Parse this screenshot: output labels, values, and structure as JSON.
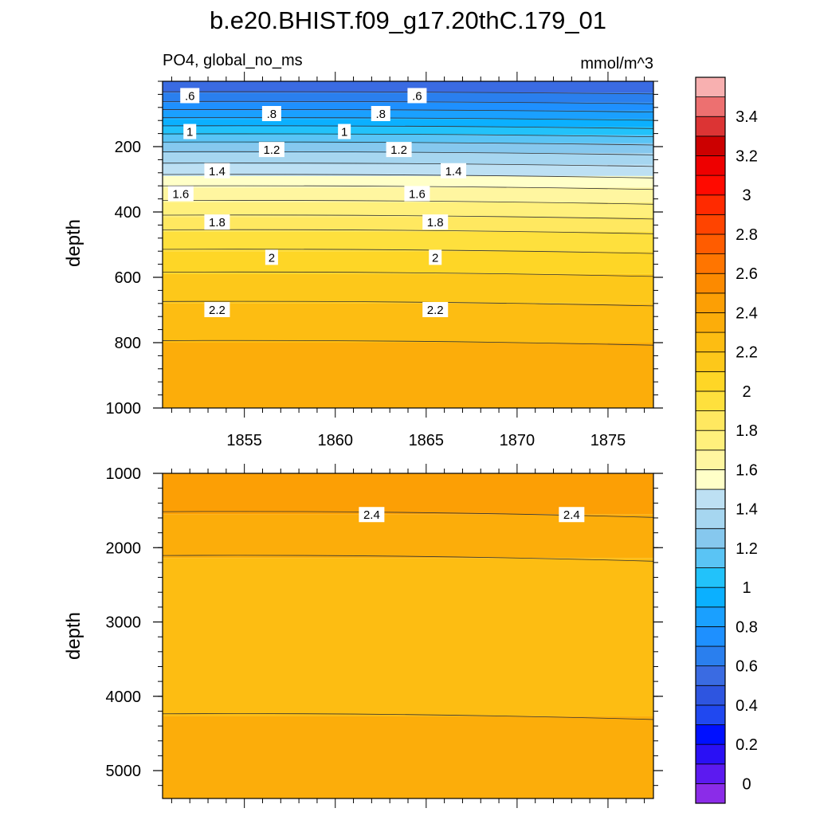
{
  "chart_data": {
    "type": "contour",
    "title": "b.e20.BHIST.f09_g17.20thC.179_01",
    "subtitle_left": "PO4, global_no_ms",
    "subtitle_right": "mmol/m^3",
    "panels": [
      {
        "ylabel": "depth",
        "ylim": [
          0,
          1000
        ],
        "y_reversed": true,
        "yticks": [
          200,
          400,
          600,
          800,
          1000
        ],
        "xlim": [
          1850.5,
          1877.5
        ],
        "xticks": [
          1855,
          1860,
          1865,
          1870,
          1875
        ],
        "bands": [
          {
            "low": 0.5,
            "high": 0.6,
            "d0": 0,
            "d1": 35
          },
          {
            "low": 0.6,
            "high": 0.7,
            "d0": 35,
            "d1": 65
          },
          {
            "low": 0.7,
            "high": 0.8,
            "d0": 65,
            "d1": 90
          },
          {
            "low": 0.8,
            "high": 0.9,
            "d0": 90,
            "d1": 115
          },
          {
            "low": 0.9,
            "high": 1.0,
            "d0": 115,
            "d1": 140
          },
          {
            "low": 1.0,
            "high": 1.1,
            "d0": 140,
            "d1": 165
          },
          {
            "low": 1.1,
            "high": 1.2,
            "d0": 165,
            "d1": 190
          },
          {
            "low": 1.2,
            "high": 1.3,
            "d0": 190,
            "d1": 220
          },
          {
            "low": 1.3,
            "high": 1.4,
            "d0": 220,
            "d1": 255
          },
          {
            "low": 1.4,
            "high": 1.5,
            "d0": 255,
            "d1": 290
          },
          {
            "low": 1.5,
            "high": 1.6,
            "d0": 290,
            "d1": 325
          },
          {
            "low": 1.6,
            "high": 1.7,
            "d0": 325,
            "d1": 370
          },
          {
            "low": 1.7,
            "high": 1.8,
            "d0": 370,
            "d1": 415
          },
          {
            "low": 1.8,
            "high": 1.9,
            "d0": 415,
            "d1": 460
          },
          {
            "low": 1.9,
            "high": 2.0,
            "d0": 460,
            "d1": 520
          },
          {
            "low": 2.0,
            "high": 2.1,
            "d0": 520,
            "d1": 590
          },
          {
            "low": 2.1,
            "high": 2.2,
            "d0": 590,
            "d1": 680
          },
          {
            "low": 2.2,
            "high": 2.3,
            "d0": 680,
            "d1": 800
          },
          {
            "low": 2.3,
            "high": 2.4,
            "d0": 800,
            "d1": 1000
          }
        ],
        "contour_labels": [
          {
            "text": ".6",
            "year": 1852,
            "depth": 45
          },
          {
            "text": ".6",
            "year": 1864.5,
            "depth": 45
          },
          {
            "text": ".8",
            "year": 1856.5,
            "depth": 100
          },
          {
            "text": ".8",
            "year": 1862.5,
            "depth": 100
          },
          {
            "text": "1",
            "year": 1852,
            "depth": 155
          },
          {
            "text": "1",
            "year": 1860.5,
            "depth": 155
          },
          {
            "text": "1.2",
            "year": 1856.5,
            "depth": 210
          },
          {
            "text": "1.2",
            "year": 1863.5,
            "depth": 210
          },
          {
            "text": "1.4",
            "year": 1853.5,
            "depth": 275
          },
          {
            "text": "1.4",
            "year": 1866.5,
            "depth": 275
          },
          {
            "text": "1.6",
            "year": 1851.5,
            "depth": 345
          },
          {
            "text": "1.6",
            "year": 1864.5,
            "depth": 345
          },
          {
            "text": "1.8",
            "year": 1853.5,
            "depth": 432
          },
          {
            "text": "1.8",
            "year": 1865.5,
            "depth": 432
          },
          {
            "text": "2",
            "year": 1856.5,
            "depth": 540
          },
          {
            "text": "2",
            "year": 1865.5,
            "depth": 540
          },
          {
            "text": "2.2",
            "year": 1853.5,
            "depth": 700
          },
          {
            "text": "2.2",
            "year": 1865.5,
            "depth": 700
          }
        ]
      },
      {
        "ylabel": "depth",
        "ylim": [
          1000,
          5375
        ],
        "y_reversed": true,
        "yticks": [
          1000,
          2000,
          3000,
          4000,
          5000
        ],
        "xlim": [
          1850.5,
          1877.5
        ],
        "bands": [
          {
            "low": 2.4,
            "high": 2.5,
            "d0": 1000,
            "d1": 1550
          },
          {
            "low": 2.3,
            "high": 2.4,
            "d0": 1550,
            "d1": 2140
          },
          {
            "low": 2.2,
            "high": 2.3,
            "d0": 2140,
            "d1": 4270
          },
          {
            "low": 2.3,
            "high": 2.4,
            "d0": 4270,
            "d1": 5375
          }
        ],
        "contour_labels": [
          {
            "text": "2.4",
            "year": 1862,
            "depth": 1560
          },
          {
            "text": "2.4",
            "year": 1873,
            "depth": 1560
          }
        ]
      }
    ],
    "colorbar": {
      "labels": [
        "0",
        "0.2",
        "0.4",
        "0.6",
        "0.8",
        "1",
        "1.2",
        "1.4",
        "1.6",
        "1.8",
        "2",
        "2.2",
        "2.4",
        "2.6",
        "2.8",
        "3",
        "3.2",
        "3.4"
      ],
      "levels_step": 0.1,
      "min": -0.1,
      "max": 3.6,
      "colors": [
        "#8b2ce8",
        "#5c1af0",
        "#2a10f5",
        "#0010ff",
        "#2048f0",
        "#2e55e0",
        "#3a6be2",
        "#2a7fee",
        "#1e90ff",
        "#1aa0ff",
        "#0bb0ff",
        "#22c2fa",
        "#5ac4f5",
        "#86c8ee",
        "#a6d6f0",
        "#bde0f3",
        "#ffffc8",
        "#fff6a0",
        "#fff07c",
        "#ffe860",
        "#fee03d",
        "#fed626",
        "#fdc81a",
        "#fdbd12",
        "#fcad0a",
        "#fc9f05",
        "#fc8a00",
        "#ff7500",
        "#ff5c00",
        "#ff4400",
        "#ff2a00",
        "#ff0a00",
        "#ee0000",
        "#cc0000",
        "#dc3434",
        "#ed7070",
        "#f8b0b0"
      ]
    }
  }
}
